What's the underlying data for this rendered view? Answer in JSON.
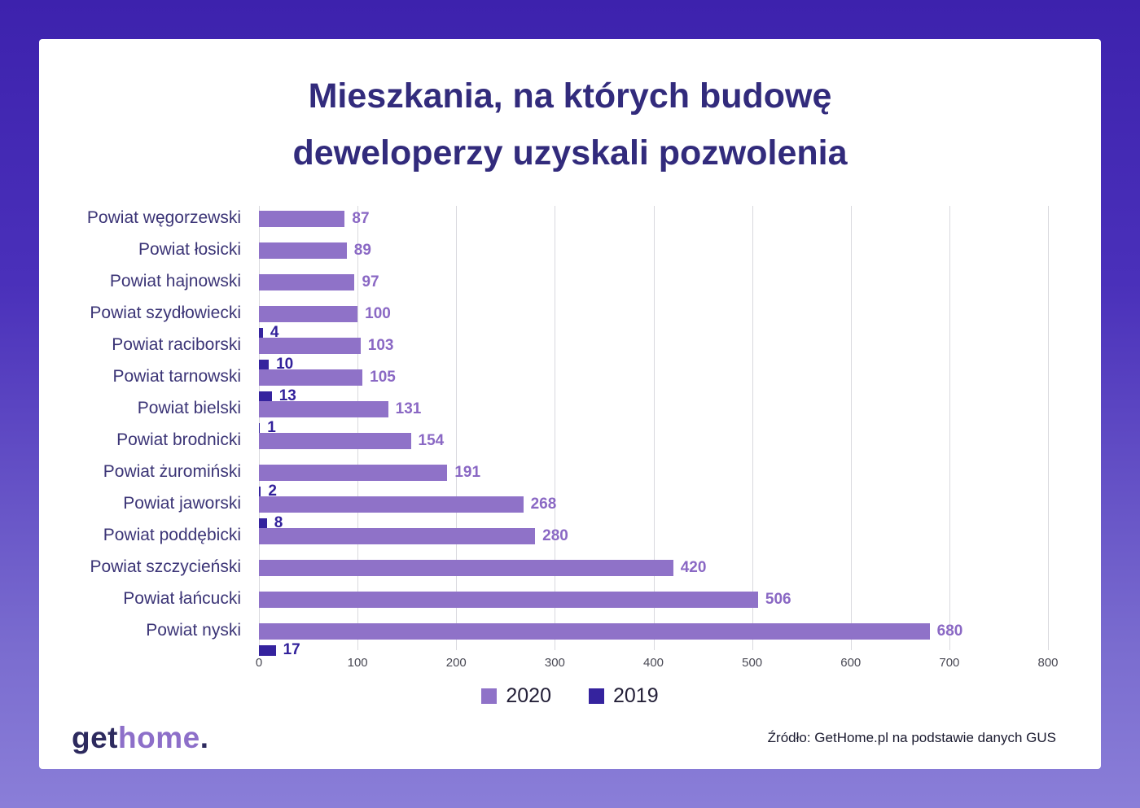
{
  "header": {
    "title_line1": "Mieszkania, na których budowę",
    "title_line2": "deweloperzy uzyskali pozwolenia"
  },
  "chart_data": {
    "type": "bar",
    "orientation": "horizontal",
    "title": "Mieszkania, na których budowę deweloperzy uzyskali pozwolenia",
    "categories": [
      "Powiat węgorzewski",
      "Powiat łosicki",
      "Powiat hajnowski",
      "Powiat szydłowiecki",
      "Powiat raciborski",
      "Powiat tarnowski",
      "Powiat bielski",
      "Powiat brodnicki",
      "Powiat żuromiński",
      "Powiat jaworski",
      "Powiat poddębicki",
      "Powiat szczycieński",
      "Powiat łańcucki",
      "Powiat nyski"
    ],
    "series": [
      {
        "name": "2020",
        "color": "#8f72c8",
        "values": [
          87,
          89,
          97,
          100,
          103,
          105,
          131,
          154,
          191,
          268,
          280,
          420,
          506,
          680
        ]
      },
      {
        "name": "2019",
        "color": "#35239e",
        "values": [
          null,
          null,
          null,
          4,
          10,
          13,
          1,
          null,
          2,
          8,
          null,
          null,
          null,
          17
        ]
      }
    ],
    "xlim": [
      0,
      800
    ],
    "xticks": [
      0,
      100,
      200,
      300,
      400,
      500,
      600,
      700,
      800
    ],
    "grid": true,
    "legend_position": "bottom",
    "value_labels": true
  },
  "footer": {
    "logo_get": "get",
    "logo_home": "home",
    "logo_dot": ".",
    "source": "Źródło: GetHome.pl na podstawie danych GUS"
  }
}
